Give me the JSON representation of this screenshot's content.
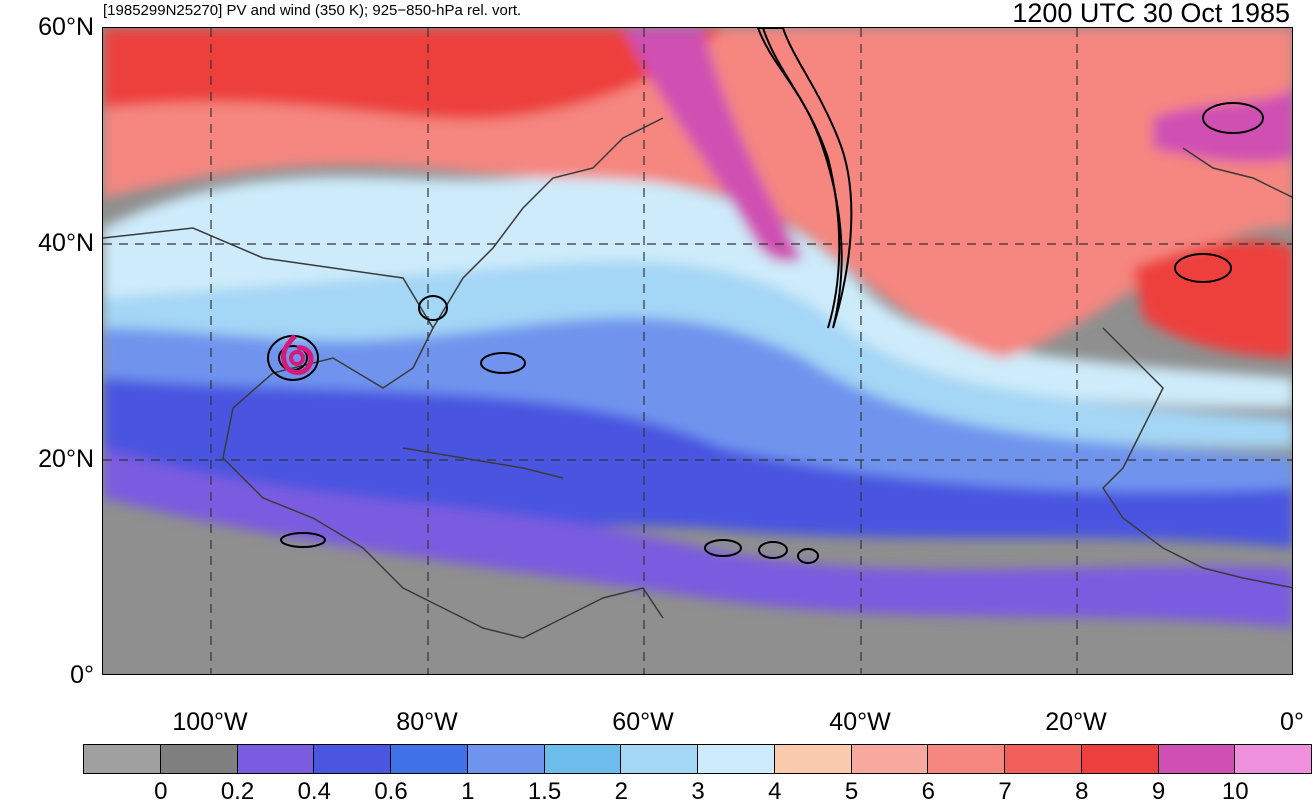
{
  "title": {
    "left": "[1985299N25270] PV and wind (350 K); 925−850-hPa rel. vort.",
    "right": "1200 UTC 30 Oct 1985"
  },
  "map": {
    "lat_labels": [
      "60°N",
      "40°N",
      "20°N",
      "0°"
    ],
    "lon_labels": [
      "100°W",
      "80°W",
      "60°W",
      "40°W",
      "20°W",
      "0°"
    ],
    "lon_range": [
      -110,
      0
    ],
    "lat_range": [
      0,
      60
    ],
    "storm_marker": "hurricane-symbol",
    "storm_marker_color": "#d6197a"
  },
  "colorbar": {
    "levels": [
      "0",
      "0.2",
      "0.4",
      "0.6",
      "1",
      "1.5",
      "2",
      "3",
      "4",
      "5",
      "6",
      "7",
      "8",
      "9",
      "10"
    ],
    "colors": [
      "#a0a0a0",
      "#7f7f7f",
      "#7a5ce0",
      "#4a55e0",
      "#3f72e6",
      "#6f94ee",
      "#6cbcec",
      "#a4d6f5",
      "#cdebfa",
      "#f9cbac",
      "#f7a9a0",
      "#f58680",
      "#f2605c",
      "#ed403e",
      "#cf4fb3",
      "#ee90dc"
    ]
  }
}
